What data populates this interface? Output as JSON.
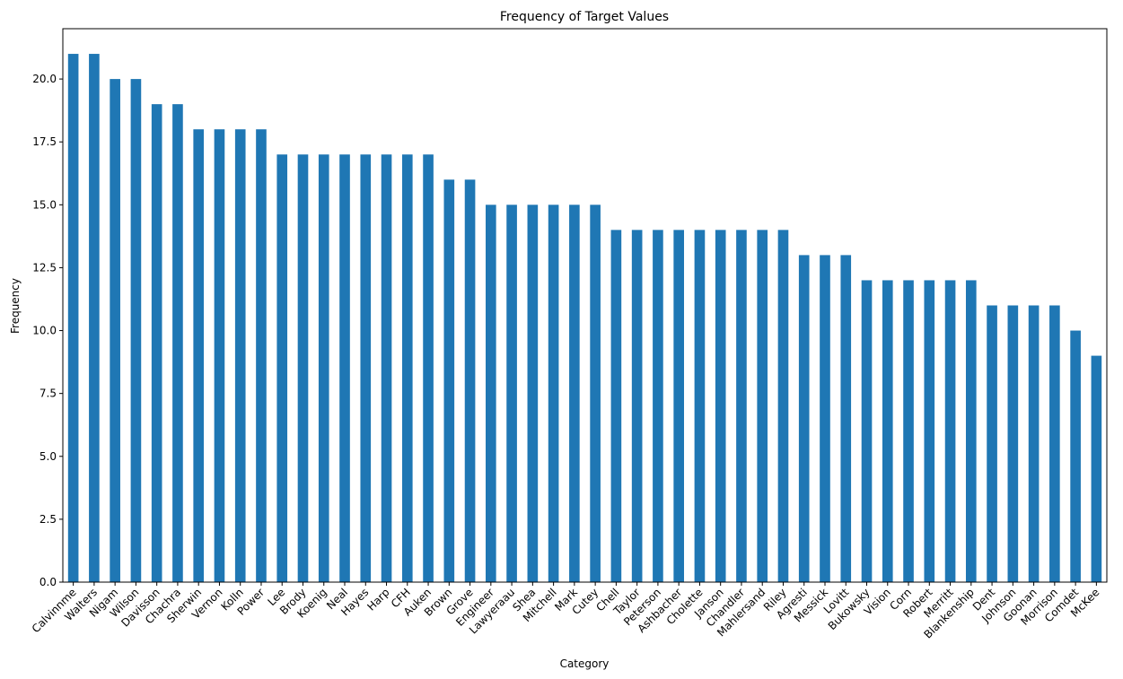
{
  "chart_data": {
    "type": "bar",
    "title": "Frequency of Target Values",
    "xlabel": "Category",
    "ylabel": "Frequency",
    "ylim": [
      0,
      22
    ],
    "yticks": [
      0.0,
      2.5,
      5.0,
      7.5,
      10.0,
      12.5,
      15.0,
      17.5,
      20.0
    ],
    "ytick_labels": [
      "0.0",
      "2.5",
      "5.0",
      "7.5",
      "10.0",
      "12.5",
      "15.0",
      "17.5",
      "20.0"
    ],
    "bar_color": "#1f77b4",
    "grid": false,
    "categories": [
      "Calvinnme",
      "Walters",
      "Nigam",
      "Wilson",
      "Davisson",
      "Chachra",
      "Sherwin",
      "Vernon",
      "Kolln",
      "Power",
      "Lee",
      "Brody",
      "Koenig",
      "Neal",
      "Hayes",
      "Harp",
      "CFH",
      "Auken",
      "Brown",
      "Grove",
      "Engineer",
      "Lawyeraau",
      "Shea",
      "Mitchell",
      "Mark",
      "Cutey",
      "Chell",
      "Taylor",
      "Peterson",
      "Ashbacher",
      "Cholette",
      "Janson",
      "Chandler",
      "Mahlersand",
      "Riley",
      "Agresti",
      "Messick",
      "Lovitt",
      "Bukowsky",
      "Vision",
      "Corn",
      "Robert",
      "Merritt",
      "Blankenship",
      "Dent",
      "Johnson",
      "Goonan",
      "Morrison",
      "Comdet",
      "McKee"
    ],
    "values": [
      21,
      21,
      20,
      20,
      19,
      19,
      18,
      18,
      18,
      18,
      17,
      17,
      17,
      17,
      17,
      17,
      17,
      17,
      16,
      16,
      15,
      15,
      15,
      15,
      15,
      15,
      14,
      14,
      14,
      14,
      14,
      14,
      14,
      14,
      14,
      13,
      13,
      13,
      12,
      12,
      12,
      12,
      12,
      12,
      11,
      11,
      11,
      11,
      10,
      9
    ]
  }
}
